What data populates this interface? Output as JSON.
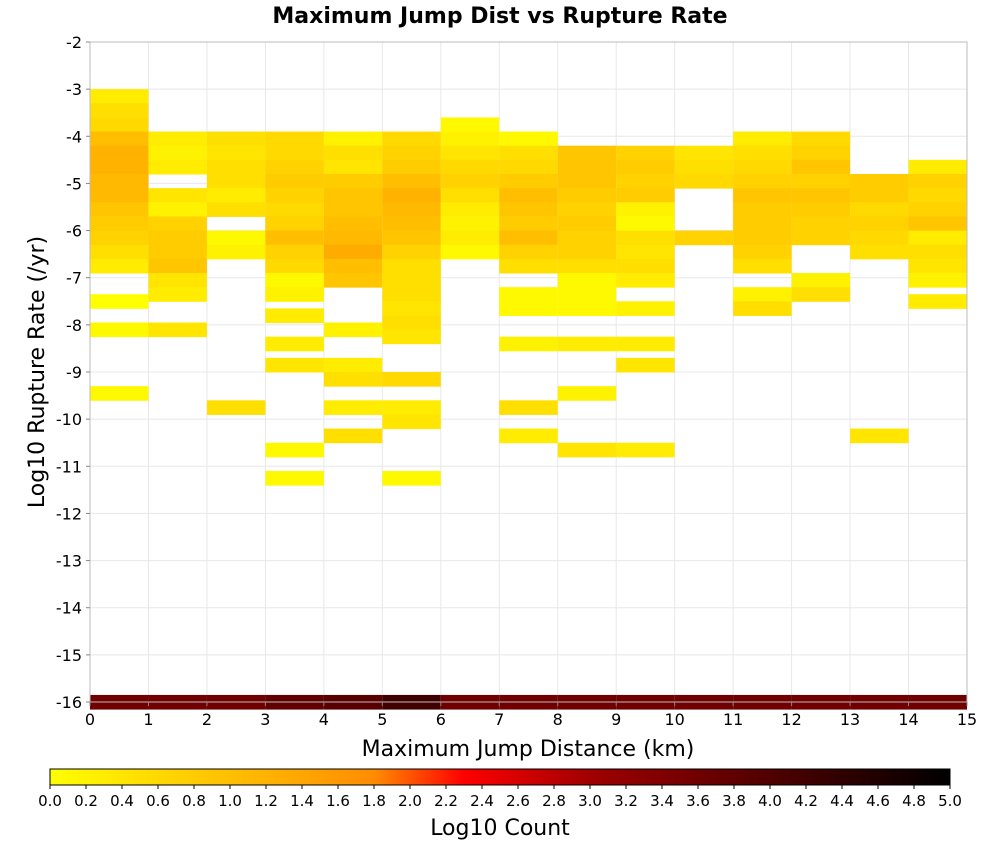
{
  "chart_data": {
    "type": "heatmap",
    "title": "Maximum Jump Dist vs Rupture Rate",
    "xlabel": "Maximum Jump Distance (km)",
    "ylabel": "Log10 Rupture Rate (/yr)",
    "colorbar_label": "Log10 Count",
    "xlim": [
      0,
      15
    ],
    "ylim": [
      -16,
      -2
    ],
    "x_ticks": [
      0,
      1,
      2,
      3,
      4,
      5,
      6,
      7,
      8,
      9,
      10,
      11,
      12,
      13,
      14,
      15
    ],
    "y_ticks": [
      -2,
      -3,
      -4,
      -5,
      -6,
      -7,
      -8,
      -9,
      -10,
      -11,
      -12,
      -13,
      -14,
      -15,
      -16
    ],
    "colorbar_ticks": [
      "0.0",
      "0.2",
      "0.4",
      "0.6",
      "0.8",
      "1.0",
      "1.2",
      "1.4",
      "1.6",
      "1.8",
      "2.0",
      "2.2",
      "2.4",
      "2.6",
      "2.8",
      "3.0",
      "3.2",
      "3.4",
      "3.6",
      "3.8",
      "4.0",
      "4.2",
      "4.4",
      "4.6",
      "4.8",
      "5.0"
    ],
    "colorbar_range": [
      0,
      5
    ],
    "colormap": [
      "#ffff00",
      "#ff8c00",
      "#ff0000",
      "#a00000",
      "#000000"
    ],
    "grid": true,
    "cell_width_x": 1,
    "cell_height_y": 0.3,
    "columns": [
      {
        "x": 0,
        "cells": [
          [
            -3.15,
            0.3
          ],
          [
            -3.45,
            0.5
          ],
          [
            -3.75,
            0.6
          ],
          [
            -4.05,
            1.0
          ],
          [
            -4.35,
            1.2
          ],
          [
            -4.65,
            1.2
          ],
          [
            -4.95,
            1.1
          ],
          [
            -5.25,
            1.1
          ],
          [
            -5.55,
            0.9
          ],
          [
            -5.85,
            0.8
          ],
          [
            -6.15,
            0.7
          ],
          [
            -6.45,
            0.5
          ],
          [
            -6.75,
            0.3
          ],
          [
            -7.5,
            0.0
          ],
          [
            -8.1,
            0.1
          ],
          [
            -9.45,
            0.1
          ],
          [
            -16.0,
            3.6
          ]
        ]
      },
      {
        "x": 1,
        "cells": [
          [
            -4.05,
            0.3
          ],
          [
            -4.35,
            0.2
          ],
          [
            -4.65,
            0.3
          ],
          [
            -5.25,
            0.4
          ],
          [
            -5.55,
            0.2
          ],
          [
            -5.85,
            0.7
          ],
          [
            -6.15,
            0.8
          ],
          [
            -6.45,
            0.8
          ],
          [
            -6.75,
            0.9
          ],
          [
            -7.05,
            0.4
          ],
          [
            -7.35,
            0.3
          ],
          [
            -8.1,
            0.4
          ],
          [
            -16.0,
            3.6
          ]
        ]
      },
      {
        "x": 2,
        "cells": [
          [
            -4.05,
            0.5
          ],
          [
            -4.35,
            0.4
          ],
          [
            -4.65,
            0.5
          ],
          [
            -4.95,
            0.5
          ],
          [
            -5.25,
            0.3
          ],
          [
            -5.55,
            0.5
          ],
          [
            -6.15,
            0.1
          ],
          [
            -6.45,
            0.2
          ],
          [
            -9.75,
            0.5
          ],
          [
            -16.0,
            3.6
          ]
        ]
      },
      {
        "x": 3,
        "cells": [
          [
            -4.05,
            0.6
          ],
          [
            -4.35,
            0.6
          ],
          [
            -4.65,
            0.7
          ],
          [
            -4.95,
            0.8
          ],
          [
            -5.25,
            0.7
          ],
          [
            -5.55,
            0.6
          ],
          [
            -5.85,
            0.7
          ],
          [
            -6.15,
            1.0
          ],
          [
            -6.45,
            0.7
          ],
          [
            -6.75,
            0.6
          ],
          [
            -7.05,
            0.1
          ],
          [
            -7.35,
            0.2
          ],
          [
            -7.8,
            0.3
          ],
          [
            -8.4,
            0.3
          ],
          [
            -8.85,
            0.4
          ],
          [
            -10.65,
            0.1
          ],
          [
            -11.25,
            0.1
          ],
          [
            -16.0,
            3.8
          ]
        ]
      },
      {
        "x": 4,
        "cells": [
          [
            -4.05,
            0.2
          ],
          [
            -4.35,
            0.5
          ],
          [
            -4.65,
            0.4
          ],
          [
            -4.95,
            0.8
          ],
          [
            -5.25,
            0.9
          ],
          [
            -5.55,
            0.9
          ],
          [
            -5.85,
            1.0
          ],
          [
            -6.15,
            1.1
          ],
          [
            -6.45,
            1.3
          ],
          [
            -6.75,
            1.0
          ],
          [
            -7.05,
            0.9
          ],
          [
            -8.1,
            0.2
          ],
          [
            -8.85,
            0.3
          ],
          [
            -9.15,
            0.5
          ],
          [
            -9.75,
            0.3
          ],
          [
            -10.35,
            0.5
          ],
          [
            -16.0,
            3.9
          ]
        ]
      },
      {
        "x": 5,
        "cells": [
          [
            -4.05,
            0.6
          ],
          [
            -4.35,
            0.7
          ],
          [
            -4.65,
            0.8
          ],
          [
            -4.95,
            1.0
          ],
          [
            -5.25,
            1.2
          ],
          [
            -5.55,
            1.1
          ],
          [
            -5.85,
            1.0
          ],
          [
            -6.15,
            0.9
          ],
          [
            -6.45,
            0.7
          ],
          [
            -6.75,
            0.5
          ],
          [
            -7.05,
            0.5
          ],
          [
            -7.35,
            0.5
          ],
          [
            -7.65,
            0.4
          ],
          [
            -7.95,
            0.5
          ],
          [
            -8.25,
            0.4
          ],
          [
            -9.15,
            0.6
          ],
          [
            -9.75,
            0.3
          ],
          [
            -10.05,
            0.4
          ],
          [
            -11.25,
            0.1
          ],
          [
            -16.0,
            4.2
          ]
        ]
      },
      {
        "x": 6,
        "cells": [
          [
            -3.75,
            0.1
          ],
          [
            -4.05,
            0.2
          ],
          [
            -4.35,
            0.4
          ],
          [
            -4.65,
            0.6
          ],
          [
            -4.95,
            0.7
          ],
          [
            -5.25,
            0.5
          ],
          [
            -5.55,
            0.3
          ],
          [
            -5.85,
            0.2
          ],
          [
            -6.15,
            0.3
          ],
          [
            -6.45,
            0.1
          ],
          [
            -16.0,
            3.6
          ]
        ]
      },
      {
        "x": 7,
        "cells": [
          [
            -4.05,
            0.1
          ],
          [
            -4.35,
            0.5
          ],
          [
            -4.65,
            0.6
          ],
          [
            -4.95,
            0.8
          ],
          [
            -5.25,
            1.0
          ],
          [
            -5.55,
            0.9
          ],
          [
            -5.85,
            0.8
          ],
          [
            -6.15,
            1.0
          ],
          [
            -6.45,
            0.7
          ],
          [
            -6.75,
            0.5
          ],
          [
            -7.35,
            0.1
          ],
          [
            -7.65,
            0.1
          ],
          [
            -8.4,
            0.2
          ],
          [
            -9.75,
            0.5
          ],
          [
            -10.35,
            0.3
          ],
          [
            -16.0,
            3.6
          ]
        ]
      },
      {
        "x": 8,
        "cells": [
          [
            -4.35,
            0.9
          ],
          [
            -4.65,
            0.9
          ],
          [
            -4.95,
            0.9
          ],
          [
            -5.25,
            0.8
          ],
          [
            -5.55,
            0.7
          ],
          [
            -5.85,
            0.8
          ],
          [
            -6.15,
            0.7
          ],
          [
            -6.45,
            0.7
          ],
          [
            -6.75,
            0.5
          ],
          [
            -7.05,
            0.1
          ],
          [
            -7.35,
            0.1
          ],
          [
            -7.65,
            0.1
          ],
          [
            -8.4,
            0.3
          ],
          [
            -9.45,
            0.2
          ],
          [
            -10.65,
            0.4
          ],
          [
            -16.0,
            3.6
          ]
        ]
      },
      {
        "x": 9,
        "cells": [
          [
            -4.35,
            0.7
          ],
          [
            -4.65,
            0.8
          ],
          [
            -4.95,
            0.7
          ],
          [
            -5.25,
            0.8
          ],
          [
            -5.55,
            0.2
          ],
          [
            -5.85,
            0.1
          ],
          [
            -6.15,
            0.5
          ],
          [
            -6.45,
            0.4
          ],
          [
            -6.75,
            0.5
          ],
          [
            -7.05,
            0.3
          ],
          [
            -7.65,
            0.2
          ],
          [
            -8.4,
            0.3
          ],
          [
            -8.85,
            0.4
          ],
          [
            -10.65,
            0.3
          ],
          [
            -16.0,
            3.6
          ]
        ]
      },
      {
        "x": 10,
        "cells": [
          [
            -4.35,
            0.4
          ],
          [
            -4.65,
            0.5
          ],
          [
            -4.95,
            0.6
          ],
          [
            -6.15,
            0.7
          ],
          [
            -16.0,
            3.6
          ]
        ]
      },
      {
        "x": 11,
        "cells": [
          [
            -4.05,
            0.3
          ],
          [
            -4.35,
            0.5
          ],
          [
            -4.65,
            0.6
          ],
          [
            -4.95,
            0.7
          ],
          [
            -5.25,
            0.9
          ],
          [
            -5.55,
            0.8
          ],
          [
            -5.85,
            0.8
          ],
          [
            -6.15,
            0.8
          ],
          [
            -6.45,
            0.7
          ],
          [
            -6.75,
            0.5
          ],
          [
            -7.35,
            0.2
          ],
          [
            -7.65,
            0.5
          ],
          [
            -16.0,
            3.6
          ]
        ]
      },
      {
        "x": 12,
        "cells": [
          [
            -4.05,
            0.6
          ],
          [
            -4.35,
            0.7
          ],
          [
            -4.65,
            0.9
          ],
          [
            -4.95,
            0.7
          ],
          [
            -5.25,
            0.9
          ],
          [
            -5.55,
            0.8
          ],
          [
            -5.85,
            0.7
          ],
          [
            -6.15,
            0.7
          ],
          [
            -7.05,
            0.2
          ],
          [
            -7.35,
            0.5
          ],
          [
            -16.0,
            3.6
          ]
        ]
      },
      {
        "x": 13,
        "cells": [
          [
            -4.95,
            0.8
          ],
          [
            -5.25,
            0.8
          ],
          [
            -5.55,
            0.6
          ],
          [
            -5.85,
            0.7
          ],
          [
            -6.15,
            0.6
          ],
          [
            -6.45,
            0.5
          ],
          [
            -10.35,
            0.4
          ],
          [
            -16.0,
            3.6
          ]
        ]
      },
      {
        "x": 14,
        "cells": [
          [
            -4.65,
            0.3
          ],
          [
            -4.95,
            0.7
          ],
          [
            -5.25,
            0.6
          ],
          [
            -5.55,
            0.7
          ],
          [
            -5.85,
            0.9
          ],
          [
            -6.15,
            0.3
          ],
          [
            -6.45,
            0.5
          ],
          [
            -6.75,
            0.4
          ],
          [
            -7.05,
            0.2
          ],
          [
            -7.5,
            0.3
          ],
          [
            -16.0,
            3.6
          ]
        ]
      }
    ]
  }
}
